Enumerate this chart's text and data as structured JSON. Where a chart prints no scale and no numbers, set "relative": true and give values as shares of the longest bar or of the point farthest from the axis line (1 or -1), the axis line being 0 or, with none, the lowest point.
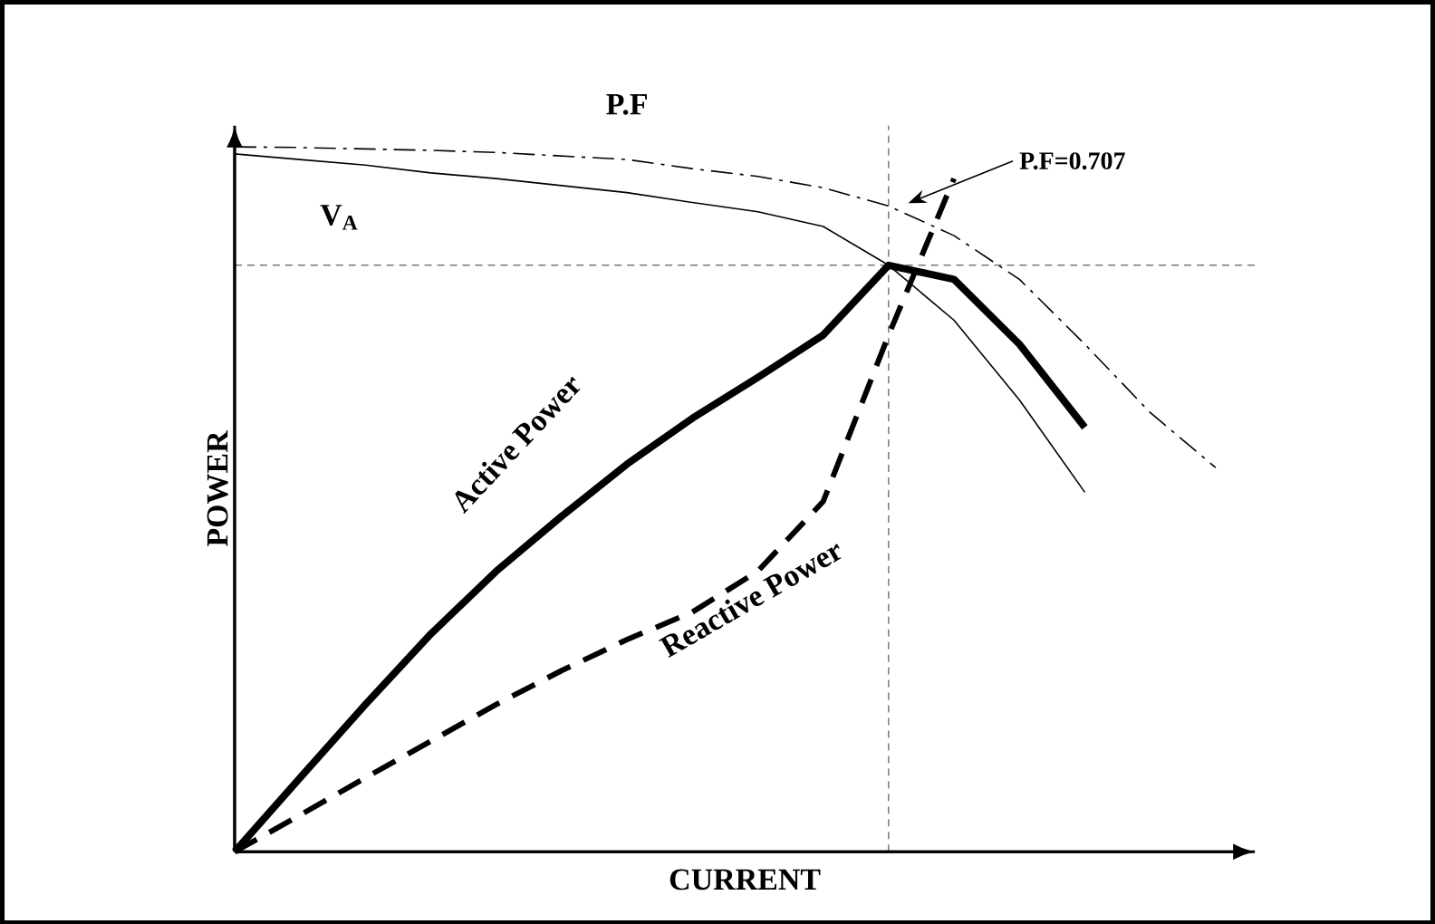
{
  "chart_data": {
    "type": "line",
    "relative": true,
    "xlabel": "CURRENT",
    "ylabel": "POWER",
    "categories": [
      null,
      null,
      null,
      null,
      null,
      null,
      null,
      null,
      null,
      null,
      null,
      null,
      null,
      null,
      null,
      null
    ],
    "series": [
      {
        "name": "P.F",
        "color": "#000000",
        "line_style": "dashdot",
        "values": [
          1.0,
          0.999,
          0.997,
          0.995,
          0.992,
          0.987,
          0.982,
          0.969,
          0.958,
          0.942,
          0.916,
          0.874,
          0.812,
          0.72,
          0.623,
          0.545
        ]
      },
      {
        "name": "V$_{A}$",
        "color": "#000000",
        "line_style": "solid",
        "values": [
          0.99,
          0.982,
          0.974,
          0.963,
          0.955,
          0.945,
          0.935,
          0.921,
          0.908,
          0.887,
          0.832,
          0.754,
          0.641,
          0.51,
          null,
          null
        ]
      },
      {
        "name": "Active Power",
        "color": "#000000",
        "line_style": "solid",
        "values": [
          0,
          0.105,
          0.209,
          0.309,
          0.398,
          0.476,
          0.55,
          0.615,
          0.673,
          0.733,
          0.832,
          0.812,
          0.72,
          0.602,
          null,
          null
        ]
      },
      {
        "name": "Reactive Power",
        "color": "#000000",
        "line_style": "dashed",
        "values": [
          0,
          0.052,
          0.105,
          0.157,
          0.209,
          0.257,
          0.301,
          0.34,
          0.398,
          0.497,
          0.733,
          0.955,
          null,
          null,
          null,
          null
        ]
      }
    ],
    "ref_lines": [
      {
        "axis": "y",
        "value": 0.832,
        "color": "#000000",
        "line_style": "dashed"
      }
    ],
    "annotations": [
      "P.F=0.707"
    ]
  }
}
